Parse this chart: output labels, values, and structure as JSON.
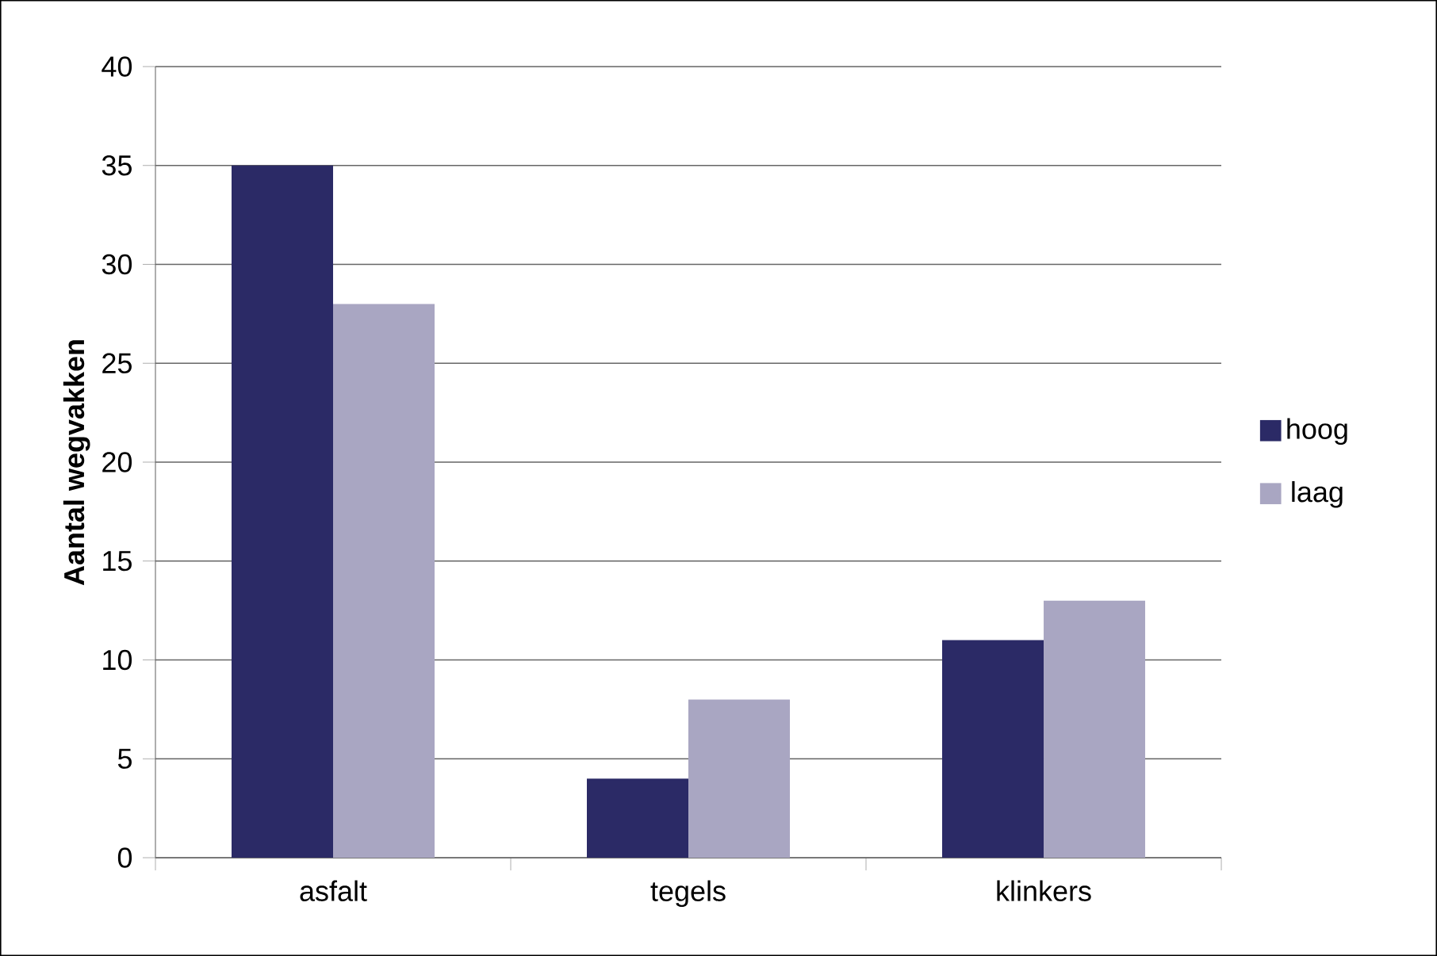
{
  "chart_data": {
    "type": "bar",
    "ylabel": "Aantal wegvakken",
    "categories": [
      "asfalt",
      "tegels",
      "klinkers"
    ],
    "series": [
      {
        "name": "hoog",
        "color": "#2b2a66",
        "values": [
          35,
          4,
          11
        ]
      },
      {
        "name": "laag",
        "color": "#a9a6c2",
        "values": [
          28,
          8,
          13
        ]
      }
    ],
    "ylim": [
      0,
      40
    ],
    "yticks": [
      0,
      5,
      10,
      15,
      20,
      25,
      30,
      35,
      40
    ],
    "grid": "y",
    "legend": "right"
  }
}
